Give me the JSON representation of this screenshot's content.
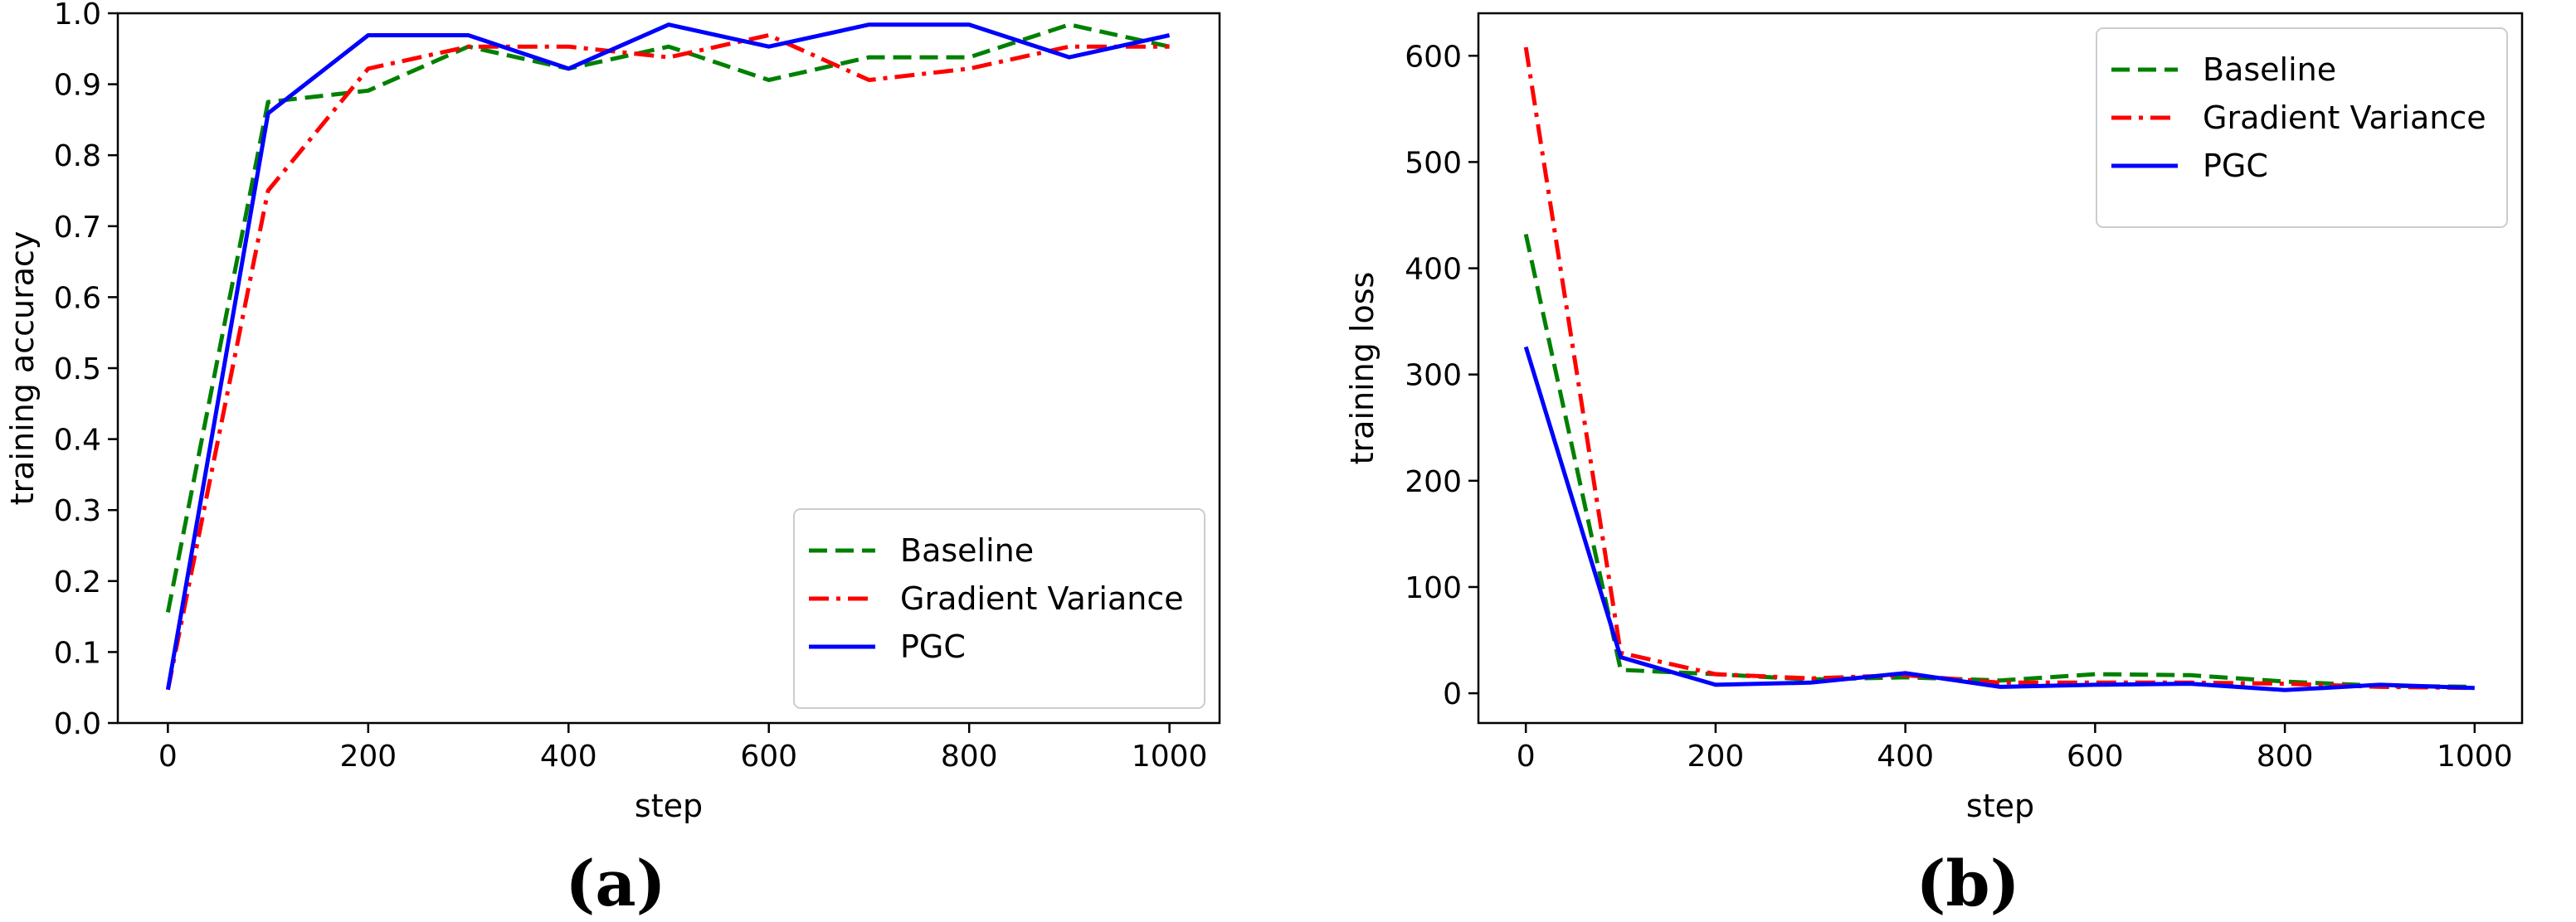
{
  "chart_data": [
    {
      "type": "line",
      "panel_label": "(a)",
      "xlabel": "step",
      "ylabel": "training accuracy",
      "xlim": [
        -50,
        1050
      ],
      "ylim": [
        0.0,
        1.0
      ],
      "xticks": [
        0,
        200,
        400,
        600,
        800,
        1000
      ],
      "yticks": [
        0.0,
        0.1,
        0.2,
        0.3,
        0.4,
        0.5,
        0.6,
        0.7,
        0.8,
        0.9,
        1.0
      ],
      "ytick_labels": [
        "0.0",
        "0.1",
        "0.2",
        "0.3",
        "0.4",
        "0.5",
        "0.6",
        "0.7",
        "0.8",
        "0.9",
        "1.0"
      ],
      "legend_position": "lower-right",
      "x": [
        0,
        100,
        200,
        300,
        400,
        500,
        600,
        700,
        800,
        900,
        1000
      ],
      "series": [
        {
          "name": "Baseline",
          "color": "#008000",
          "style": "dashed",
          "values": [
            0.156,
            0.875,
            0.891,
            0.953,
            0.922,
            0.953,
            0.906,
            0.938,
            0.938,
            0.984,
            0.953
          ]
        },
        {
          "name": "Gradient Variance",
          "color": "#ff0000",
          "style": "dashdot",
          "values": [
            0.047,
            0.75,
            0.922,
            0.953,
            0.953,
            0.938,
            0.969,
            0.906,
            0.922,
            0.953,
            0.953
          ]
        },
        {
          "name": "PGC",
          "color": "#0000ff",
          "style": "solid",
          "values": [
            0.047,
            0.859,
            0.969,
            0.969,
            0.922,
            0.984,
            0.953,
            0.984,
            0.984,
            0.938,
            0.969
          ]
        }
      ]
    },
    {
      "type": "line",
      "panel_label": "(b)",
      "xlabel": "step",
      "ylabel": "training loss",
      "xlim": [
        -50,
        1050
      ],
      "ylim": [
        -28,
        640
      ],
      "xticks": [
        0,
        200,
        400,
        600,
        800,
        1000
      ],
      "yticks": [
        0,
        100,
        200,
        300,
        400,
        500,
        600
      ],
      "ytick_labels": [
        "0",
        "100",
        "200",
        "300",
        "400",
        "500",
        "600"
      ],
      "legend_position": "top-right",
      "x": [
        0,
        100,
        200,
        300,
        400,
        500,
        600,
        700,
        800,
        900,
        1000
      ],
      "series": [
        {
          "name": "Baseline",
          "color": "#008000",
          "style": "dashed",
          "values": [
            432,
            22,
            18,
            13,
            15,
            12,
            18,
            17,
            11,
            7,
            6
          ]
        },
        {
          "name": "Gradient Variance",
          "color": "#ff0000",
          "style": "dashdot",
          "values": [
            608,
            38,
            18,
            14,
            17,
            10,
            10,
            10,
            9,
            6,
            5
          ]
        },
        {
          "name": "PGC",
          "color": "#0000ff",
          "style": "solid",
          "values": [
            326,
            34,
            8,
            10,
            19,
            6,
            8,
            9,
            3,
            8,
            5
          ]
        }
      ]
    }
  ]
}
